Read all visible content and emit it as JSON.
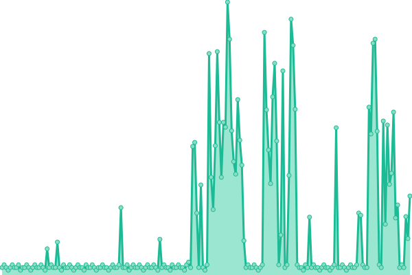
{
  "chart_data": {
    "type": "area",
    "title": "",
    "xlabel": "",
    "ylabel": "",
    "ylim": [
      0,
      100
    ],
    "grid": false,
    "axes_visible": false,
    "markers": true,
    "colors": {
      "line": "#1dba96",
      "area": "#8fe3cb",
      "marker_fill": "#86dfc4",
      "marker_stroke": "#22b893"
    },
    "values": [
      2,
      3,
      2,
      1,
      2,
      3,
      2,
      2,
      3,
      1,
      2,
      2,
      3,
      2,
      1,
      2,
      3,
      2,
      2,
      3,
      2,
      1,
      8.9,
      2,
      3,
      2,
      2,
      11.4,
      2,
      1,
      3,
      2,
      2,
      3,
      2,
      1,
      2,
      3,
      2,
      2,
      1,
      3,
      2,
      2,
      3,
      2,
      1,
      2,
      2,
      3,
      2,
      2,
      1,
      2,
      3,
      2,
      2,
      3,
      24.1,
      2,
      2,
      3,
      1,
      2,
      3,
      2,
      2,
      3,
      2,
      1,
      2,
      3,
      2,
      2,
      3,
      2,
      1,
      12.4,
      2,
      3,
      2,
      2,
      1,
      3,
      2,
      2,
      3,
      2,
      2,
      1,
      3,
      4,
      2,
      46.7,
      48.2,
      22.1,
      2,
      32.5,
      2,
      1,
      3,
      81,
      35.3,
      23.4,
      47,
      81.7,
      55.6,
      35.3,
      55.6,
      53.8,
      100,
      86.3,
      52.5,
      41.1,
      36.5,
      64,
      49,
      39.8,
      11.9,
      2,
      3,
      2,
      2,
      3,
      2,
      1,
      2,
      3,
      88.8,
      60.2,
      45.4,
      33,
      65,
      77.4,
      48.7,
      3,
      14,
      74.6,
      2,
      3,
      36,
      93.7,
      84,
      60.4,
      3,
      2,
      2,
      1,
      3,
      2,
      20.6,
      2,
      3,
      2,
      2,
      1,
      2,
      3,
      2,
      2,
      1,
      2,
      3,
      53.6,
      2,
      2,
      3,
      2,
      1,
      2,
      3,
      2,
      2,
      3,
      22.1,
      21.3,
      3,
      2,
      2,
      61.2,
      51.3,
      84.8,
      86.3,
      52.3,
      3,
      2,
      56.1,
      18,
      54.6,
      32.7,
      36.8,
      59.4,
      20.3,
      25.1,
      2,
      3,
      2,
      20.8,
      12.7,
      28.4
    ]
  }
}
